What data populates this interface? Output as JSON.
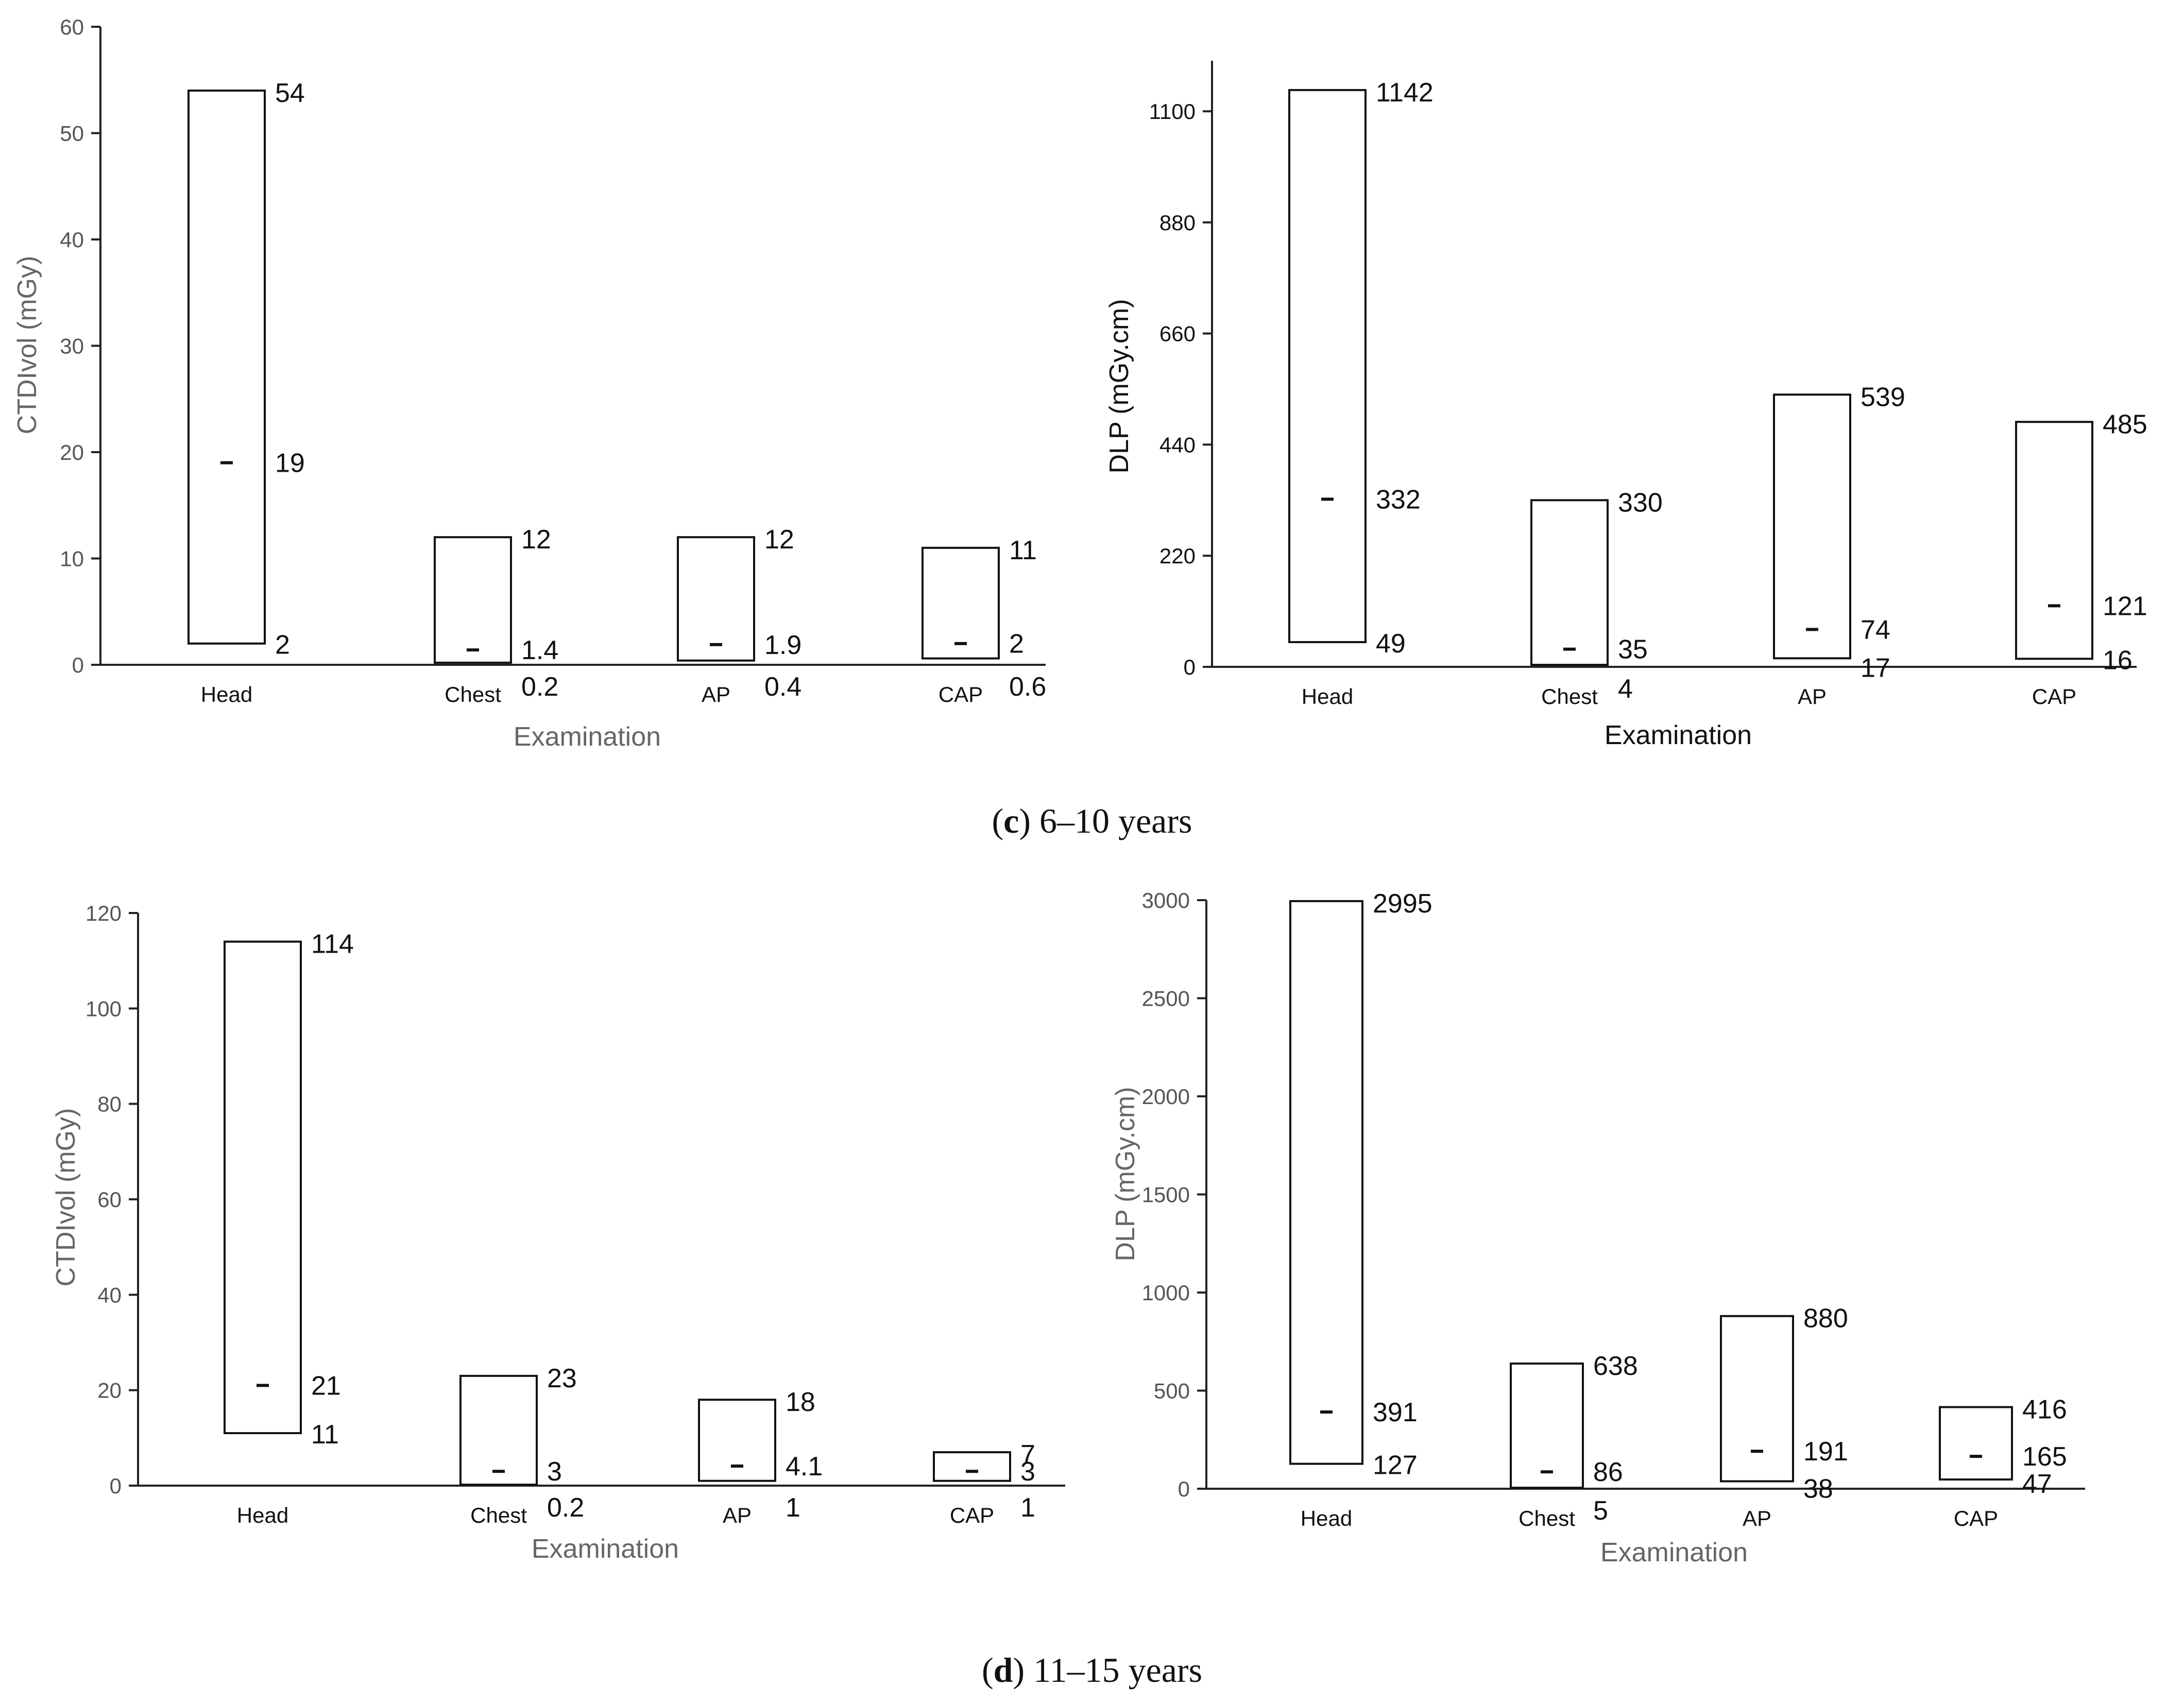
{
  "chart_data": [
    {
      "type": "box",
      "panel": "c",
      "title": "",
      "xlabel": "Examination",
      "ylabel": "CTDIvol (mGy)",
      "ylim": [
        0,
        60
      ],
      "yticks": [
        0,
        10,
        20,
        30,
        40,
        50,
        60
      ],
      "categories": [
        "Head",
        "Chest",
        "AP",
        "CAP"
      ],
      "max": [
        54,
        12,
        12,
        11
      ],
      "median": [
        19,
        1.4,
        1.9,
        2
      ],
      "min": [
        2,
        0.2,
        0.4,
        0.6
      ],
      "labels": {
        "max": [
          "54",
          "12",
          "12",
          "11"
        ],
        "median": [
          "19",
          "1.4",
          "1.9",
          "2"
        ],
        "min": [
          "2",
          "0.2",
          "0.4",
          "0.6"
        ]
      }
    },
    {
      "type": "box",
      "panel": "c",
      "title": "",
      "xlabel": "Examination",
      "ylabel": "DLP (mGy.cm)",
      "ylim": [
        0,
        1200
      ],
      "yticks": [
        0,
        220,
        440,
        660,
        880,
        1100
      ],
      "categories": [
        "Head",
        "Chest",
        "AP",
        "CAP"
      ],
      "max": [
        1142,
        330,
        539,
        485
      ],
      "median": [
        332,
        35,
        74,
        121
      ],
      "min": [
        49,
        4,
        17,
        16
      ],
      "labels": {
        "max": [
          "1142",
          "330",
          "539",
          "485"
        ],
        "median": [
          "332",
          "35",
          "74",
          "121"
        ],
        "min": [
          "49",
          "4",
          "17",
          "16"
        ]
      }
    },
    {
      "type": "box",
      "panel": "d",
      "title": "",
      "xlabel": "Examination",
      "ylabel": "CTDIvol (mGy)",
      "ylim": [
        0,
        120
      ],
      "yticks": [
        0,
        20,
        40,
        60,
        80,
        100,
        120
      ],
      "categories": [
        "Head",
        "Chest",
        "AP",
        "CAP"
      ],
      "max": [
        114,
        23,
        18,
        7
      ],
      "median": [
        21,
        3,
        4.1,
        3
      ],
      "min": [
        11,
        0.2,
        1,
        1
      ],
      "labels": {
        "max": [
          "114",
          "23",
          "18",
          "7"
        ],
        "median": [
          "21",
          "3",
          "4.1",
          "3"
        ],
        "min": [
          "11",
          "0.2",
          "1",
          "1"
        ]
      }
    },
    {
      "type": "box",
      "panel": "d",
      "title": "",
      "xlabel": "Examination",
      "ylabel": "DLP (mGy.cm)",
      "ylim": [
        0,
        3000
      ],
      "yticks": [
        0,
        500,
        1000,
        1500,
        2000,
        2500,
        3000
      ],
      "categories": [
        "Head",
        "Chest",
        "AP",
        "CAP"
      ],
      "max": [
        2995,
        638,
        880,
        416
      ],
      "median": [
        391,
        86,
        191,
        165
      ],
      "min": [
        127,
        5,
        38,
        47
      ],
      "labels": {
        "max": [
          "2995",
          "638",
          "880",
          "416"
        ],
        "median": [
          "391",
          "86",
          "191",
          "165"
        ],
        "min": [
          "127",
          "5",
          "38",
          "47"
        ]
      }
    }
  ],
  "captions": {
    "c": {
      "letter": "c",
      "text": " 6–10 years"
    },
    "d": {
      "letter": "d",
      "text": " 11–15 years"
    }
  }
}
